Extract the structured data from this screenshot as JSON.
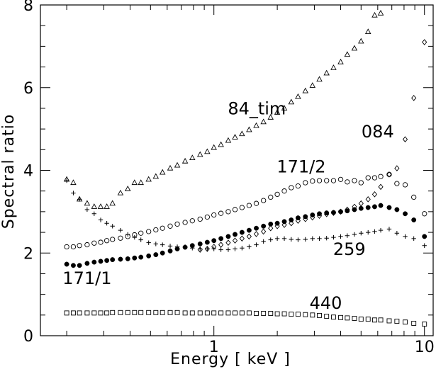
{
  "chart_data": {
    "type": "scatter",
    "xlabel": "Energy [ keV ]",
    "ylabel": "Spectral ratio",
    "xscale": "log",
    "xlim": [
      0.15,
      11
    ],
    "ylim": [
      0,
      8
    ],
    "xticks": [
      {
        "value": 1,
        "label": "1"
      },
      {
        "value": 10,
        "label": "10"
      }
    ],
    "yticks": [
      {
        "value": 0,
        "label": "0"
      },
      {
        "value": 2,
        "label": "2"
      },
      {
        "value": 4,
        "label": "4"
      },
      {
        "value": 6,
        "label": "6"
      },
      {
        "value": 8,
        "label": "8"
      }
    ],
    "grid": false,
    "legend": "none",
    "annotations": [
      {
        "text": "84_tim",
        "x": 1.6,
        "y": 5.35
      },
      {
        "text": "084",
        "x": 6.0,
        "y": 4.8
      },
      {
        "text": "171/2",
        "x": 2.6,
        "y": 3.95
      },
      {
        "text": "259",
        "x": 4.4,
        "y": 1.95
      },
      {
        "text": "171/1",
        "x": 0.25,
        "y": 1.25
      },
      {
        "text": "440",
        "x": 3.4,
        "y": 0.65
      }
    ],
    "series": [
      {
        "name": "84_tim",
        "marker": "triangle",
        "x": [
          0.2,
          0.215,
          0.23,
          0.25,
          0.27,
          0.29,
          0.31,
          0.33,
          0.36,
          0.39,
          0.42,
          0.45,
          0.49,
          0.53,
          0.57,
          0.62,
          0.67,
          0.73,
          0.79,
          0.86,
          0.93,
          1.0,
          1.08,
          1.17,
          1.26,
          1.36,
          1.47,
          1.59,
          1.72,
          1.86,
          2.0,
          2.16,
          2.33,
          2.51,
          2.72,
          2.94,
          3.17,
          3.43,
          3.7,
          4.0,
          4.3,
          4.65,
          5.0,
          5.4,
          5.8,
          6.2
        ],
        "y": [
          3.78,
          3.7,
          3.3,
          3.2,
          3.12,
          3.12,
          3.12,
          3.2,
          3.45,
          3.55,
          3.7,
          3.7,
          3.78,
          3.85,
          3.95,
          4.05,
          4.12,
          4.22,
          4.3,
          4.38,
          4.45,
          4.55,
          4.62,
          4.72,
          4.8,
          4.88,
          4.98,
          5.08,
          5.17,
          5.28,
          5.4,
          5.5,
          5.65,
          5.78,
          5.92,
          6.05,
          6.2,
          6.35,
          6.48,
          6.62,
          6.8,
          6.95,
          7.12,
          7.35,
          7.75,
          7.8
        ]
      },
      {
        "name": "171/2",
        "marker": "circle",
        "x": [
          0.2,
          0.215,
          0.23,
          0.25,
          0.27,
          0.29,
          0.31,
          0.33,
          0.36,
          0.39,
          0.42,
          0.45,
          0.49,
          0.53,
          0.57,
          0.62,
          0.67,
          0.73,
          0.79,
          0.86,
          0.93,
          1.0,
          1.08,
          1.17,
          1.26,
          1.36,
          1.47,
          1.59,
          1.72,
          1.86,
          2.0,
          2.16,
          2.33,
          2.51,
          2.72,
          2.94,
          3.17,
          3.43,
          3.7,
          4.0,
          4.3,
          4.65,
          5.0,
          5.4,
          5.8,
          6.2,
          6.8,
          7.4,
          8.1,
          8.9,
          10.0
        ],
        "y": [
          2.15,
          2.15,
          2.18,
          2.2,
          2.24,
          2.26,
          2.3,
          2.33,
          2.36,
          2.4,
          2.44,
          2.48,
          2.52,
          2.56,
          2.6,
          2.65,
          2.7,
          2.74,
          2.78,
          2.82,
          2.87,
          2.92,
          2.96,
          3.0,
          3.05,
          3.1,
          3.15,
          3.2,
          3.27,
          3.35,
          3.42,
          3.5,
          3.58,
          3.62,
          3.7,
          3.74,
          3.75,
          3.75,
          3.75,
          3.78,
          3.72,
          3.75,
          3.7,
          3.82,
          3.82,
          3.85,
          3.9,
          3.68,
          3.65,
          3.35,
          2.95
        ]
      },
      {
        "name": "171/1",
        "marker": "filled-circle",
        "x": [
          0.2,
          0.215,
          0.23,
          0.25,
          0.27,
          0.29,
          0.31,
          0.33,
          0.36,
          0.39,
          0.42,
          0.45,
          0.49,
          0.53,
          0.57,
          0.62,
          0.67,
          0.73,
          0.79,
          0.86,
          0.93,
          1.0,
          1.08,
          1.17,
          1.26,
          1.36,
          1.47,
          1.59,
          1.72,
          1.86,
          2.0,
          2.16,
          2.33,
          2.51,
          2.72,
          2.94,
          3.17,
          3.43,
          3.7,
          4.0,
          4.3,
          4.65,
          5.0,
          5.4,
          5.8,
          6.2,
          6.8,
          7.4,
          8.1,
          8.9,
          10.0
        ],
        "y": [
          1.73,
          1.7,
          1.7,
          1.75,
          1.78,
          1.8,
          1.82,
          1.84,
          1.85,
          1.86,
          1.88,
          1.9,
          1.93,
          1.96,
          2.0,
          2.05,
          2.1,
          2.14,
          2.18,
          2.22,
          2.26,
          2.3,
          2.35,
          2.4,
          2.45,
          2.5,
          2.55,
          2.6,
          2.65,
          2.7,
          2.72,
          2.76,
          2.8,
          2.85,
          2.88,
          2.92,
          2.95,
          2.97,
          2.98,
          3.0,
          3.02,
          3.05,
          3.08,
          3.1,
          3.12,
          3.15,
          3.1,
          3.05,
          2.95,
          2.8,
          2.4
        ]
      },
      {
        "name": "084",
        "marker": "diamond",
        "x": [
          0.86,
          0.93,
          1.0,
          1.08,
          1.17,
          1.26,
          1.36,
          1.47,
          1.59,
          1.72,
          1.86,
          2.0,
          2.16,
          2.33,
          2.51,
          2.72,
          2.94,
          3.17,
          3.43,
          3.7,
          4.0,
          4.3,
          4.65,
          5.0,
          5.4,
          5.8,
          6.2,
          6.8,
          7.4,
          8.1,
          8.9,
          10.0
        ],
        "y": [
          2.08,
          2.1,
          2.15,
          2.2,
          2.25,
          2.3,
          2.35,
          2.4,
          2.46,
          2.52,
          2.6,
          2.65,
          2.68,
          2.72,
          2.78,
          2.82,
          2.86,
          2.9,
          2.94,
          2.97,
          3.0,
          3.05,
          3.12,
          3.2,
          3.3,
          3.42,
          3.6,
          3.9,
          4.05,
          4.75,
          5.75,
          7.1
        ]
      },
      {
        "name": "259",
        "marker": "plus",
        "x": [
          0.2,
          0.215,
          0.23,
          0.25,
          0.27,
          0.29,
          0.31,
          0.33,
          0.36,
          0.39,
          0.42,
          0.45,
          0.49,
          0.53,
          0.57,
          0.62,
          0.67,
          0.73,
          0.79,
          0.86,
          0.93,
          1.0,
          1.08,
          1.17,
          1.26,
          1.36,
          1.47,
          1.59,
          1.72,
          1.86,
          2.0,
          2.16,
          2.33,
          2.51,
          2.72,
          2.94,
          3.17,
          3.43,
          3.7,
          4.0,
          4.3,
          4.65,
          5.0,
          5.4,
          5.8,
          6.2,
          6.8,
          7.4,
          8.1,
          8.9,
          10.0
        ],
        "y": [
          3.75,
          3.45,
          3.3,
          3.05,
          2.95,
          2.8,
          2.72,
          2.65,
          2.55,
          2.45,
          2.38,
          2.32,
          2.25,
          2.22,
          2.2,
          2.17,
          2.15,
          2.15,
          2.12,
          2.1,
          2.1,
          2.1,
          2.08,
          2.08,
          2.1,
          2.12,
          2.15,
          2.2,
          2.28,
          2.32,
          2.35,
          2.35,
          2.33,
          2.32,
          2.33,
          2.35,
          2.35,
          2.36,
          2.38,
          2.4,
          2.42,
          2.45,
          2.48,
          2.5,
          2.52,
          2.55,
          2.58,
          2.48,
          2.4,
          2.35,
          2.18
        ]
      },
      {
        "name": "440",
        "marker": "square",
        "x": [
          0.2,
          0.215,
          0.23,
          0.25,
          0.27,
          0.29,
          0.31,
          0.33,
          0.36,
          0.39,
          0.42,
          0.45,
          0.49,
          0.53,
          0.57,
          0.62,
          0.67,
          0.73,
          0.79,
          0.86,
          0.93,
          1.0,
          1.08,
          1.17,
          1.26,
          1.36,
          1.47,
          1.59,
          1.72,
          1.86,
          2.0,
          2.16,
          2.33,
          2.51,
          2.72,
          2.94,
          3.17,
          3.43,
          3.7,
          4.0,
          4.3,
          4.65,
          5.0,
          5.4,
          5.8,
          6.2,
          6.8,
          7.4,
          8.1,
          8.9,
          10.0
        ],
        "y": [
          0.55,
          0.55,
          0.55,
          0.55,
          0.55,
          0.55,
          0.55,
          0.56,
          0.56,
          0.56,
          0.56,
          0.56,
          0.56,
          0.56,
          0.56,
          0.56,
          0.56,
          0.55,
          0.55,
          0.55,
          0.55,
          0.55,
          0.55,
          0.55,
          0.55,
          0.55,
          0.55,
          0.54,
          0.54,
          0.54,
          0.53,
          0.53,
          0.52,
          0.52,
          0.51,
          0.5,
          0.49,
          0.47,
          0.45,
          0.44,
          0.43,
          0.42,
          0.4,
          0.4,
          0.38,
          0.38,
          0.36,
          0.35,
          0.33,
          0.3,
          0.28
        ]
      }
    ]
  }
}
